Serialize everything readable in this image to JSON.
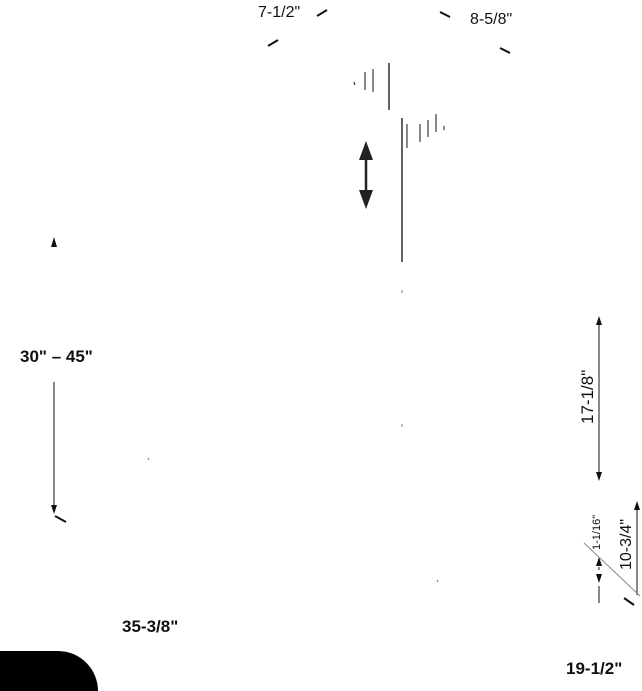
{
  "diagram": {
    "dims": {
      "top_left_width": "7-1/2\"",
      "top_right_width": "8-5/8\"",
      "height_range": "30\" – 45\"",
      "overall_width": "35-3/8\"",
      "upper_height": "17-1/8\"",
      "lower_height": "10-3/4\"",
      "small_height": "1-1/16\"",
      "base_width": "19-1/2\""
    },
    "icons": {
      "adjust": "up-down-arrow-icon"
    },
    "colors": {
      "line": "#111111",
      "tab": "#000000"
    }
  }
}
